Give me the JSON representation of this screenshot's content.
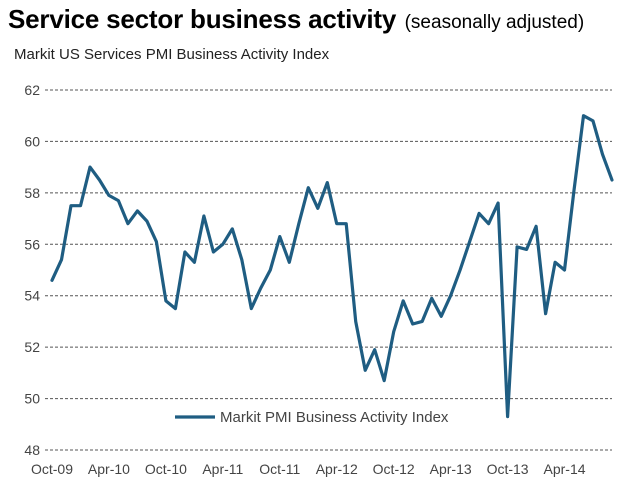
{
  "chart_data": {
    "type": "line",
    "title": "Service sector business activity",
    "title_suffix": "(seasonally adjusted)",
    "subtitle": "Markit US Services PMI Business Activity Index",
    "x": [
      "2009-10",
      "2009-11",
      "2009-12",
      "2010-01",
      "2010-02",
      "2010-03",
      "2010-04",
      "2010-05",
      "2010-06",
      "2010-07",
      "2010-08",
      "2010-09",
      "2010-10",
      "2010-11",
      "2010-12",
      "2011-01",
      "2011-02",
      "2011-03",
      "2011-04",
      "2011-05",
      "2011-06",
      "2011-07",
      "2011-08",
      "2011-09",
      "2011-10",
      "2011-11",
      "2011-12",
      "2012-01",
      "2012-02",
      "2012-03",
      "2012-04",
      "2012-05",
      "2012-06",
      "2012-07",
      "2012-08",
      "2012-09",
      "2012-10",
      "2012-11",
      "2012-12",
      "2013-01",
      "2013-02",
      "2013-03",
      "2013-04",
      "2013-05",
      "2013-06",
      "2013-07",
      "2013-08",
      "2013-09",
      "2013-10",
      "2013-11",
      "2013-12",
      "2014-01",
      "2014-02",
      "2014-03",
      "2014-04",
      "2014-05",
      "2014-06",
      "2014-07",
      "2014-08",
      "2014-09"
    ],
    "series": [
      {
        "name": "Markit PMI Business Activity Index",
        "color": "#1f5d82",
        "values": [
          54.6,
          55.4,
          57.5,
          57.5,
          59.0,
          58.5,
          57.9,
          57.7,
          56.8,
          57.3,
          56.9,
          56.1,
          53.8,
          53.5,
          55.7,
          55.3,
          57.1,
          55.7,
          56.0,
          56.6,
          55.4,
          53.5,
          54.3,
          55.0,
          56.3,
          55.3,
          56.8,
          58.2,
          57.4,
          58.4,
          56.8,
          56.8,
          53.0,
          51.1,
          51.9,
          50.7,
          52.6,
          53.8,
          52.9,
          53.0,
          53.9,
          53.2,
          54.0,
          55.0,
          56.1,
          57.2,
          56.8,
          57.6,
          49.3,
          55.9,
          55.8,
          56.7,
          53.3,
          55.3,
          55.0,
          58.1,
          61.0,
          60.8,
          59.5,
          58.5
        ]
      }
    ],
    "x_tick_labels": [
      "Oct-09",
      "Apr-10",
      "Oct-10",
      "Apr-11",
      "Oct-11",
      "Apr-12",
      "Oct-12",
      "Apr-13",
      "Oct-13",
      "Apr-14"
    ],
    "y_tick_labels": [
      "48",
      "50",
      "52",
      "54",
      "56",
      "58",
      "60",
      "62"
    ],
    "ylim": [
      48,
      62
    ],
    "grid": "horizontal-dashed",
    "legend": "bottom-center"
  }
}
